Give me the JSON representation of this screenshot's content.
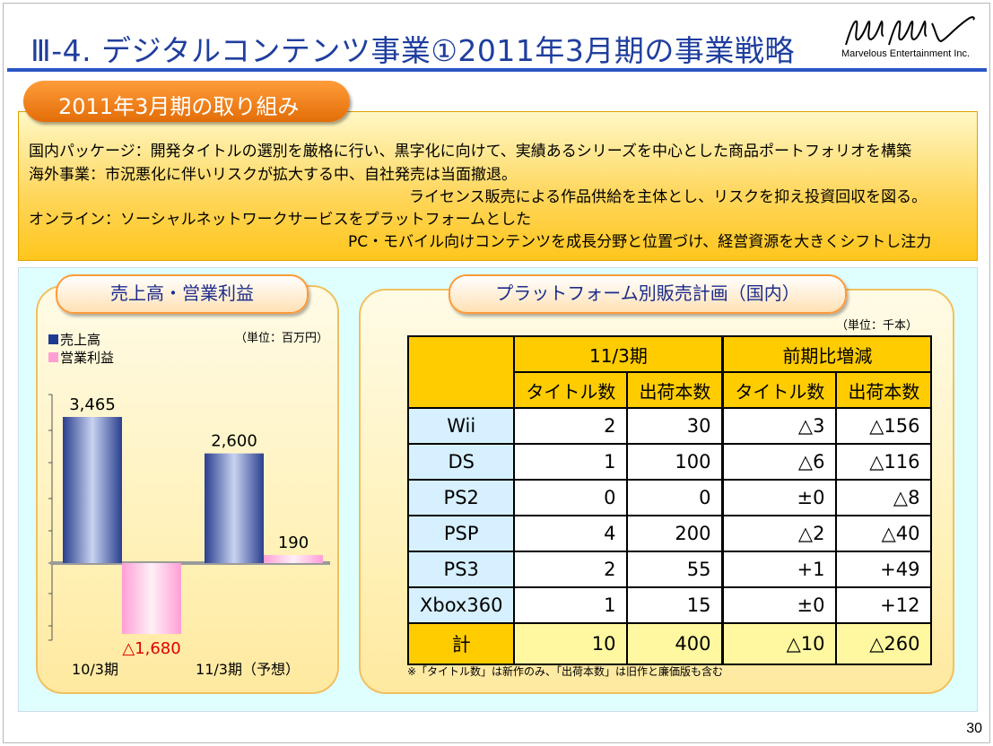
{
  "slide": {
    "title": "Ⅲ-4. デジタルコンテンツ事業①2011年3月期の事業戦略",
    "logo_text": "MMV",
    "logo_company": "Marvelous Entertainment Inc.",
    "page_number": "30"
  },
  "initiatives": {
    "heading": "2011年3月期の取り組み",
    "lines": [
      "国内パッケージ：開発タイトルの選別を厳格に行い、黒字化に向けて、実績あるシリーズを中心とした商品ポートフォリオを構築",
      "海外事業：市況悪化に伴いリスクが拡大する中、自社発売は当面撤退。",
      "ライセンス販売による作品供給を主体とし、リスクを抑え投資回収を図る。",
      "オンライン：ソーシャルネットワークサービスをプラットフォームとした",
      "PC・モバイル向けコンテンツを成長分野と位置づけ、経営資源を大きくシフトし注力"
    ]
  },
  "sales_panel": {
    "heading": "売上高・営業利益",
    "unit": "（単位：百万円）",
    "legend": [
      {
        "label": "売上高",
        "color": "#1f3a93"
      },
      {
        "label": "営業利益",
        "color": "#ff9ed2"
      }
    ]
  },
  "chart_data": {
    "type": "bar",
    "categories": [
      "10/3期",
      "11/3期（予想）"
    ],
    "series": [
      {
        "name": "売上高",
        "values": [
          3465,
          2600
        ],
        "labels": [
          "3,465",
          "2,600"
        ],
        "color": "#3e56a8"
      },
      {
        "name": "営業利益",
        "values": [
          -1680,
          190
        ],
        "labels": [
          "△1,680",
          "190"
        ],
        "color": "#ffb0dc"
      }
    ],
    "ylim": [
      -1700,
      3700
    ],
    "unit": "（単位：百万円）"
  },
  "platform_panel": {
    "heading": "プラットフォーム別販売計画（国内）",
    "unit": "（単位：千本）",
    "group_headers": [
      "11/3期",
      "前期比増減"
    ],
    "col_headers": [
      "タイトル数",
      "出荷本数",
      "タイトル数",
      "出荷本数"
    ],
    "rows": [
      {
        "name": "Wii",
        "cells": [
          "2",
          "30",
          "△3",
          "△156"
        ]
      },
      {
        "name": "DS",
        "cells": [
          "1",
          "100",
          "△6",
          "△116"
        ]
      },
      {
        "name": "PS2",
        "cells": [
          "0",
          "0",
          "±0",
          "△8"
        ]
      },
      {
        "name": "PSP",
        "cells": [
          "4",
          "200",
          "△2",
          "△40"
        ]
      },
      {
        "name": "PS3",
        "cells": [
          "2",
          "55",
          "+1",
          "+49"
        ]
      },
      {
        "name": "Xbox360",
        "cells": [
          "1",
          "15",
          "±0",
          "+12"
        ]
      }
    ],
    "total": {
      "name": "計",
      "cells": [
        "10",
        "400",
        "△10",
        "△260"
      ]
    },
    "footnote": "※「タイトル数」は新作のみ、「出荷本数」は旧作と廉価版も含む"
  }
}
